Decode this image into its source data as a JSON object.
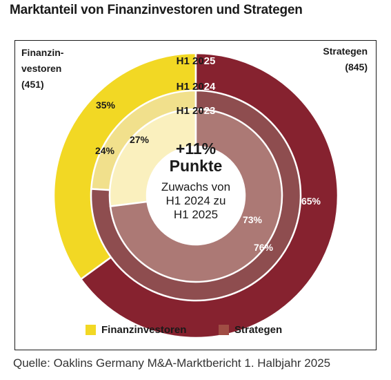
{
  "title": "Marktanteil von Finanzinvestoren und Strategen",
  "left_label": {
    "line1": "Finanzin-",
    "line2": "vestoren",
    "line3": "(451)"
  },
  "right_label": {
    "line1": "Strategen",
    "line2": "(845)"
  },
  "center": {
    "headline1": "+11%",
    "headline2": "Punkte",
    "sub1": "Zuwachs von",
    "sub2": "H1 2024 zu",
    "sub3": "H1 2025"
  },
  "legend": [
    {
      "label": "Finanzinvestoren",
      "color": "#f2d824"
    },
    {
      "label": "Strategen",
      "color": "#a04d44"
    }
  ],
  "source": "Quelle: Oaklins Germany M&A-Marktbericht 1. Halbjahr 2025",
  "chart_data": {
    "type": "pie",
    "subtype": "nested-donut",
    "title": "Marktanteil von Finanzinvestoren und Strategen",
    "series_names": [
      "Finanzinvestoren",
      "Strategen"
    ],
    "rings": [
      {
        "label": "H1 2025",
        "values": [
          35,
          65
        ],
        "value_labels": [
          "35%",
          "65%"
        ],
        "colors": [
          "#f2d824",
          "#86222f"
        ]
      },
      {
        "label": "H1 2024",
        "values": [
          24,
          76
        ],
        "value_labels": [
          "24%",
          "76%"
        ],
        "colors": [
          "#f1e08c",
          "#8e4d4f"
        ]
      },
      {
        "label": "H1 2023",
        "values": [
          27,
          73
        ],
        "value_labels": [
          "27%",
          "73%"
        ],
        "colors": [
          "#faf0be",
          "#ac7975"
        ]
      }
    ]
  }
}
